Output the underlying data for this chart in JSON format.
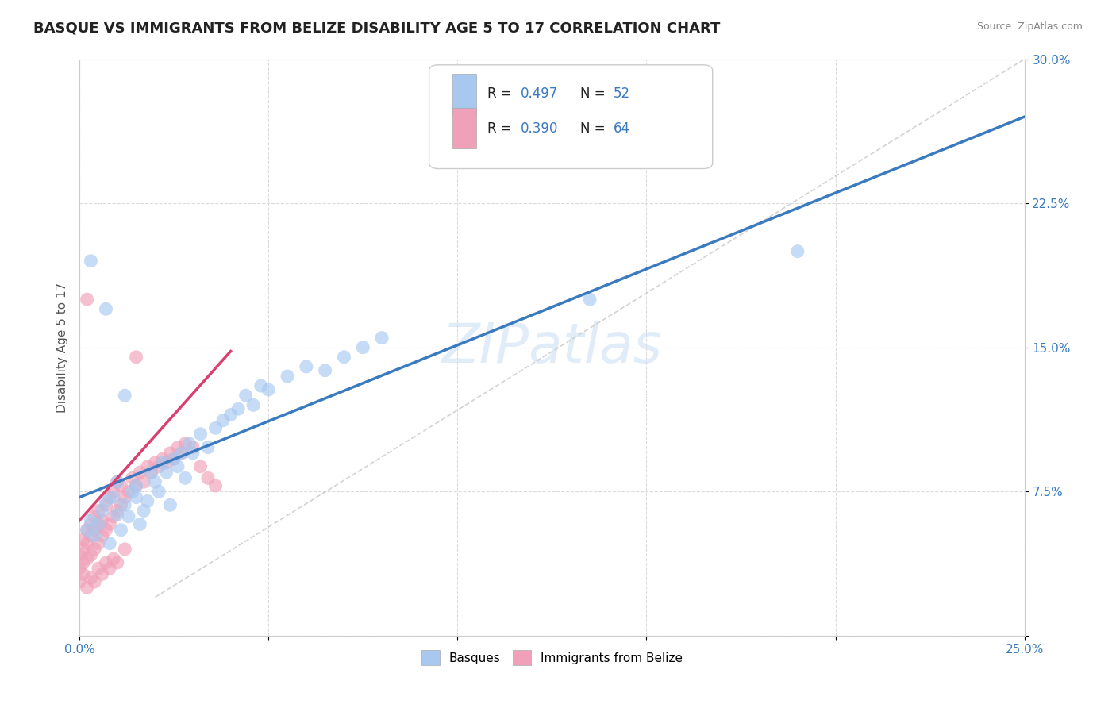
{
  "title": "BASQUE VS IMMIGRANTS FROM BELIZE DISABILITY AGE 5 TO 17 CORRELATION CHART",
  "source": "Source: ZipAtlas.com",
  "ylabel": "Disability Age 5 to 17",
  "xlim": [
    0.0,
    0.25
  ],
  "ylim": [
    0.0,
    0.3
  ],
  "xticks": [
    0.0,
    0.05,
    0.1,
    0.15,
    0.2,
    0.25
  ],
  "yticks": [
    0.0,
    0.075,
    0.15,
    0.225,
    0.3
  ],
  "xtick_labels": [
    "0.0%",
    "",
    "",
    "",
    "",
    "25.0%"
  ],
  "ytick_labels": [
    "",
    "7.5%",
    "15.0%",
    "22.5%",
    "30.0%"
  ],
  "blue_color": "#a8c8f0",
  "pink_color": "#f0a0b8",
  "blue_line_color": "#3a7abf",
  "pink_line_color": "#d94070",
  "diagonal_color": "#c8c8c8",
  "watermark": "ZIPatlas",
  "background_color": "#ffffff",
  "grid_color": "#d8d8d8",
  "blue_scatter_x": [
    0.002,
    0.003,
    0.004,
    0.005,
    0.006,
    0.007,
    0.008,
    0.009,
    0.01,
    0.01,
    0.011,
    0.012,
    0.013,
    0.014,
    0.015,
    0.015,
    0.016,
    0.017,
    0.018,
    0.019,
    0.02,
    0.021,
    0.022,
    0.023,
    0.024,
    0.025,
    0.026,
    0.027,
    0.028,
    0.029,
    0.03,
    0.032,
    0.034,
    0.036,
    0.038,
    0.04,
    0.042,
    0.044,
    0.046,
    0.048,
    0.05,
    0.055,
    0.06,
    0.065,
    0.07,
    0.075,
    0.08,
    0.003,
    0.007,
    0.012,
    0.19,
    0.135
  ],
  "blue_scatter_y": [
    0.055,
    0.06,
    0.052,
    0.058,
    0.065,
    0.07,
    0.048,
    0.072,
    0.063,
    0.08,
    0.055,
    0.068,
    0.062,
    0.075,
    0.072,
    0.078,
    0.058,
    0.065,
    0.07,
    0.085,
    0.08,
    0.075,
    0.09,
    0.085,
    0.068,
    0.092,
    0.088,
    0.095,
    0.082,
    0.1,
    0.095,
    0.105,
    0.098,
    0.108,
    0.112,
    0.115,
    0.118,
    0.125,
    0.12,
    0.13,
    0.128,
    0.135,
    0.14,
    0.138,
    0.145,
    0.15,
    0.155,
    0.195,
    0.17,
    0.125,
    0.2,
    0.175
  ],
  "pink_scatter_x": [
    0.0,
    0.0,
    0.001,
    0.001,
    0.001,
    0.002,
    0.002,
    0.002,
    0.003,
    0.003,
    0.003,
    0.004,
    0.004,
    0.004,
    0.005,
    0.005,
    0.005,
    0.006,
    0.006,
    0.007,
    0.007,
    0.008,
    0.008,
    0.009,
    0.009,
    0.01,
    0.01,
    0.011,
    0.011,
    0.012,
    0.013,
    0.014,
    0.015,
    0.016,
    0.017,
    0.018,
    0.019,
    0.02,
    0.021,
    0.022,
    0.023,
    0.024,
    0.025,
    0.026,
    0.027,
    0.028,
    0.03,
    0.032,
    0.034,
    0.036,
    0.0,
    0.001,
    0.002,
    0.003,
    0.004,
    0.005,
    0.006,
    0.007,
    0.008,
    0.009,
    0.01,
    0.012,
    0.002,
    0.015
  ],
  "pink_scatter_y": [
    0.035,
    0.042,
    0.038,
    0.045,
    0.05,
    0.04,
    0.048,
    0.055,
    0.042,
    0.052,
    0.058,
    0.045,
    0.055,
    0.062,
    0.048,
    0.058,
    0.065,
    0.052,
    0.06,
    0.055,
    0.068,
    0.058,
    0.072,
    0.062,
    0.075,
    0.065,
    0.08,
    0.068,
    0.078,
    0.072,
    0.075,
    0.082,
    0.078,
    0.085,
    0.08,
    0.088,
    0.085,
    0.09,
    0.088,
    0.092,
    0.09,
    0.095,
    0.092,
    0.098,
    0.095,
    0.1,
    0.098,
    0.088,
    0.082,
    0.078,
    0.028,
    0.032,
    0.025,
    0.03,
    0.028,
    0.035,
    0.032,
    0.038,
    0.035,
    0.04,
    0.038,
    0.045,
    0.175,
    0.145
  ],
  "title_fontsize": 13,
  "axis_label_fontsize": 11,
  "tick_fontsize": 11,
  "legend_fontsize": 12,
  "blue_line_x": [
    0.0,
    0.25
  ],
  "blue_line_y": [
    0.072,
    0.27
  ],
  "pink_line_x": [
    0.0,
    0.04
  ],
  "pink_line_y": [
    0.06,
    0.148
  ]
}
